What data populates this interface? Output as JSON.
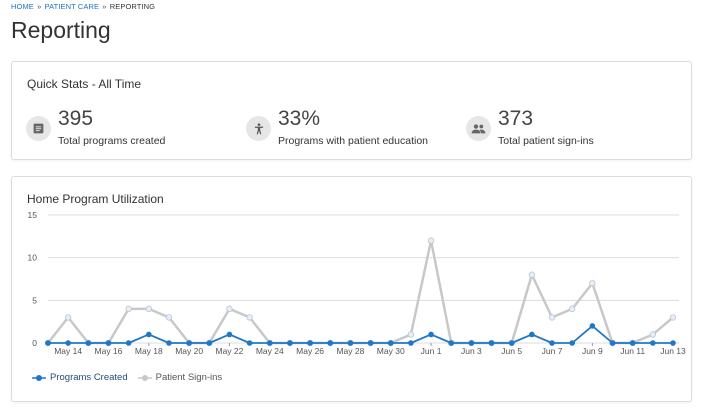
{
  "breadcrumb": {
    "home": "HOME",
    "sep": "»",
    "patient_care": "PATIENT CARE",
    "current": "REPORTING"
  },
  "page": {
    "title": "Reporting"
  },
  "quick_stats": {
    "title": "Quick Stats - All Time",
    "items": [
      {
        "icon": "document-icon",
        "value": "395",
        "label": "Total programs created"
      },
      {
        "icon": "accessibility-icon",
        "value": "33%",
        "label": "Programs with patient education"
      },
      {
        "icon": "people-icon",
        "value": "373",
        "label": "Total patient sign-ins"
      }
    ]
  },
  "utilization": {
    "title": "Home Program Utilization"
  },
  "colors": {
    "programs_created": "#1f77c9",
    "patient_signins": "#c8c8c8",
    "gridline": "#dddddd"
  },
  "chart_data": {
    "type": "line",
    "title": "Home Program Utilization",
    "ylim": [
      0,
      15
    ],
    "yticks": [
      0,
      5,
      10,
      15
    ],
    "x": [
      "May 13",
      "May 14",
      "May 15",
      "May 16",
      "May 17",
      "May 18",
      "May 19",
      "May 20",
      "May 21",
      "May 22",
      "May 23",
      "May 24",
      "May 25",
      "May 26",
      "May 27",
      "May 28",
      "May 29",
      "May 30",
      "May 31",
      "Jun 1",
      "Jun 2",
      "Jun 3",
      "Jun 4",
      "Jun 5",
      "Jun 6",
      "Jun 7",
      "Jun 8",
      "Jun 9",
      "Jun 10",
      "Jun 11",
      "Jun 12",
      "Jun 13"
    ],
    "xtick_labels": [
      "May 14",
      "May 16",
      "May 18",
      "May 20",
      "May 22",
      "May 24",
      "May 26",
      "May 28",
      "May 30",
      "Jun 1",
      "Jun 3",
      "Jun 5",
      "Jun 7",
      "Jun 9",
      "Jun 11",
      "Jun 13"
    ],
    "grid": true,
    "legend_position": "bottom-left",
    "series": [
      {
        "name": "Programs Created",
        "values": [
          0,
          0,
          0,
          0,
          0,
          1,
          0,
          0,
          0,
          1,
          0,
          0,
          0,
          0,
          0,
          0,
          0,
          0,
          0,
          1,
          0,
          0,
          0,
          0,
          1,
          0,
          0,
          2,
          0,
          0,
          0,
          0
        ]
      },
      {
        "name": "Patient Sign-ins",
        "values": [
          0,
          3,
          0,
          0,
          4,
          4,
          3,
          0,
          0,
          4,
          3,
          0,
          0,
          0,
          0,
          0,
          0,
          0,
          1,
          12,
          0,
          0,
          0,
          0,
          8,
          3,
          4,
          7,
          0,
          0,
          1,
          3
        ]
      }
    ]
  }
}
